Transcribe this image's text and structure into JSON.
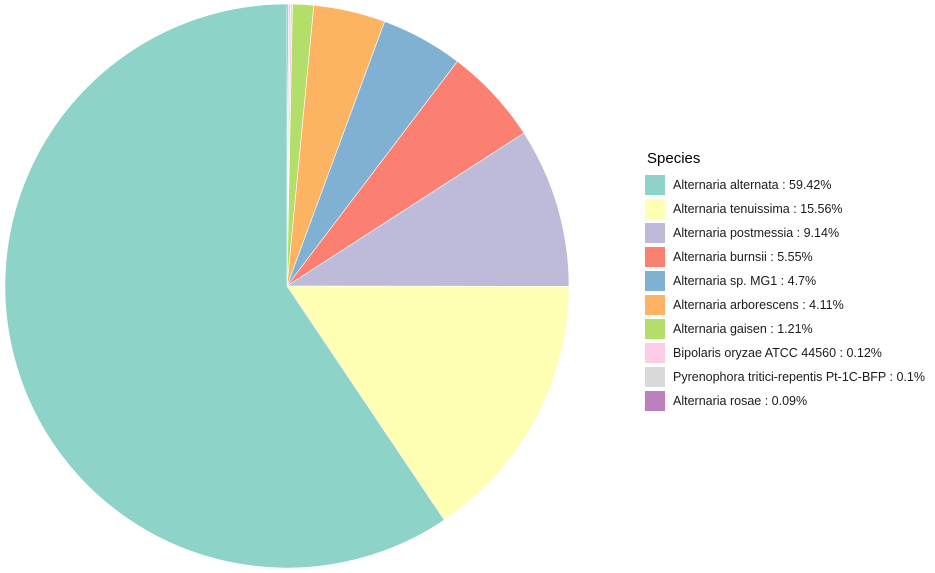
{
  "chart_data": {
    "type": "pie",
    "legend_title": "Species",
    "legend_position": "right",
    "slices": [
      {
        "label": "Alternaria alternata : 59.42%",
        "name": "Alternaria alternata",
        "value": 59.42,
        "color": "#8DD3C7"
      },
      {
        "label": "Alternaria tenuissima : 15.56%",
        "name": "Alternaria tenuissima",
        "value": 15.56,
        "color": "#FFFFB3"
      },
      {
        "label": "Alternaria postmessia : 9.14%",
        "name": "Alternaria postmessia",
        "value": 9.14,
        "color": "#BEBADA"
      },
      {
        "label": "Alternaria burnsii : 5.55%",
        "name": "Alternaria burnsii",
        "value": 5.55,
        "color": "#FB8072"
      },
      {
        "label": "Alternaria sp. MG1 : 4.7%",
        "name": "Alternaria sp. MG1",
        "value": 4.7,
        "color": "#80B1D3"
      },
      {
        "label": "Alternaria arborescens : 4.11%",
        "name": "Alternaria arborescens",
        "value": 4.11,
        "color": "#FDB462"
      },
      {
        "label": "Alternaria gaisen : 1.21%",
        "name": "Alternaria gaisen",
        "value": 1.21,
        "color": "#B3DE69"
      },
      {
        "label": "Bipolaris oryzae ATCC 44560 : 0.12%",
        "name": "Bipolaris oryzae ATCC 44560",
        "value": 0.12,
        "color": "#FCCDE5"
      },
      {
        "label": "Pyrenophora tritici-repentis Pt-1C-BFP : 0.1%",
        "name": "Pyrenophora tritici-repentis Pt-1C-BFP",
        "value": 0.1,
        "color": "#D9D9D9"
      },
      {
        "label": "Alternaria rosae : 0.09%",
        "name": "Alternaria rosae",
        "value": 0.09,
        "color": "#BC80BD"
      }
    ]
  }
}
